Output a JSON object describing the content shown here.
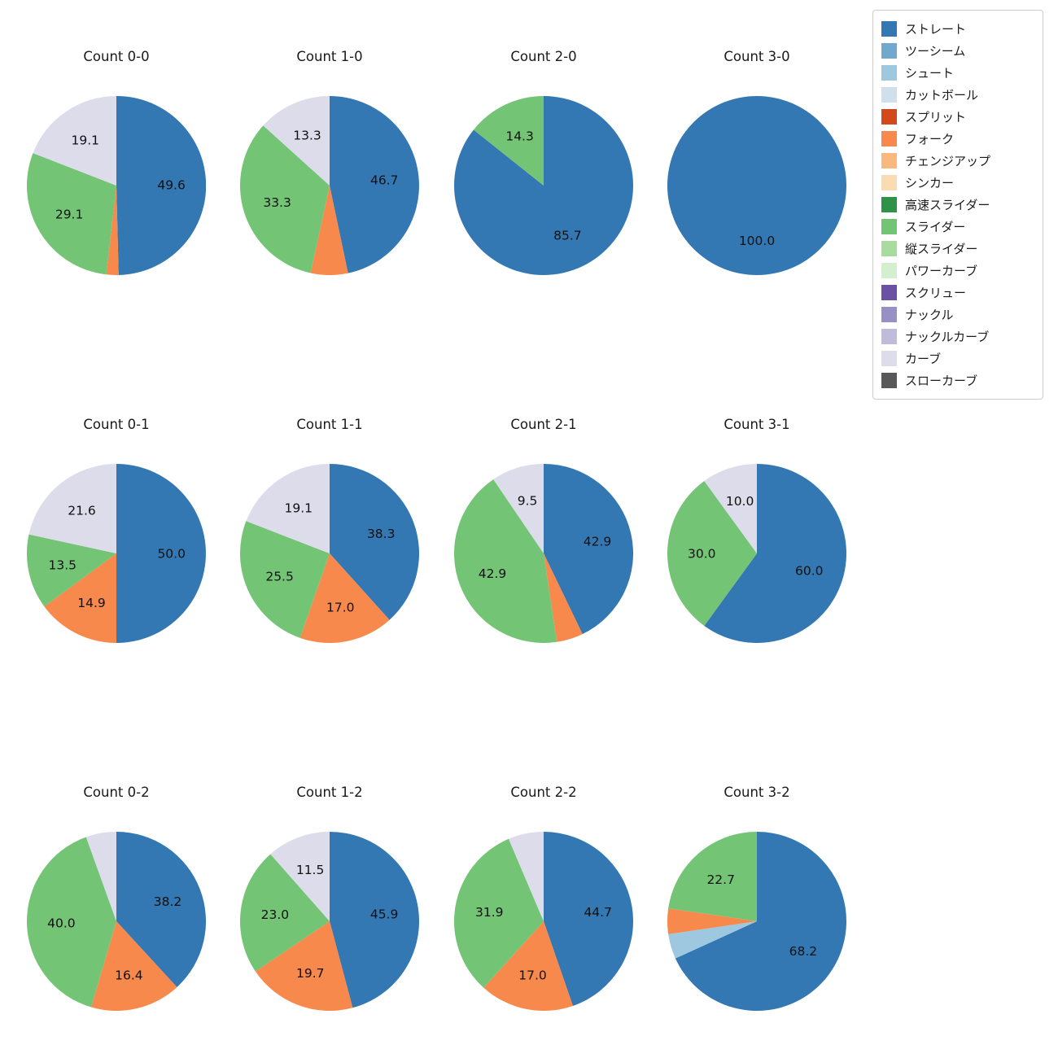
{
  "legend": {
    "items": [
      {
        "name": "ストレート",
        "color": "#3478b3"
      },
      {
        "name": "ツーシーム",
        "color": "#70a8ce"
      },
      {
        "name": "シュート",
        "color": "#9dc8e0"
      },
      {
        "name": "カットボール",
        "color": "#cfdfec"
      },
      {
        "name": "スプリット",
        "color": "#d2491c"
      },
      {
        "name": "フォーク",
        "color": "#f6894b"
      },
      {
        "name": "チェンジアップ",
        "color": "#f9b97e"
      },
      {
        "name": "シンカー",
        "color": "#fbdcb2"
      },
      {
        "name": "高速スライダー",
        "color": "#2e9247"
      },
      {
        "name": "スライダー",
        "color": "#74c476"
      },
      {
        "name": "縦スライダー",
        "color": "#a7dc9e"
      },
      {
        "name": "パワーカーブ",
        "color": "#d4efcd"
      },
      {
        "name": "スクリュー",
        "color": "#6a51a3"
      },
      {
        "name": "ナックル",
        "color": "#9790c6"
      },
      {
        "name": "ナックルカーブ",
        "color": "#bdbcdb"
      },
      {
        "name": "カーブ",
        "color": "#dcdcea"
      },
      {
        "name": "スローカーブ",
        "color": "#585858"
      }
    ]
  },
  "chart_data": [
    {
      "type": "pie",
      "title": "Count 0-0",
      "slices": [
        {
          "name": "ストレート",
          "value": 49.6,
          "label": "49.6"
        },
        {
          "name": "フォーク",
          "value": 2.2,
          "label": ""
        },
        {
          "name": "スライダー",
          "value": 29.1,
          "label": "29.1"
        },
        {
          "name": "カーブ",
          "value": 19.1,
          "label": "19.1"
        }
      ]
    },
    {
      "type": "pie",
      "title": "Count 1-0",
      "slices": [
        {
          "name": "ストレート",
          "value": 46.7,
          "label": "46.7"
        },
        {
          "name": "フォーク",
          "value": 6.7,
          "label": ""
        },
        {
          "name": "スライダー",
          "value": 33.3,
          "label": "33.3"
        },
        {
          "name": "カーブ",
          "value": 13.3,
          "label": "13.3"
        }
      ]
    },
    {
      "type": "pie",
      "title": "Count 2-0",
      "slices": [
        {
          "name": "ストレート",
          "value": 85.7,
          "label": "85.7"
        },
        {
          "name": "スライダー",
          "value": 14.3,
          "label": "14.3"
        }
      ]
    },
    {
      "type": "pie",
      "title": "Count 3-0",
      "slices": [
        {
          "name": "ストレート",
          "value": 100.0,
          "label": "100.0"
        }
      ]
    },
    {
      "type": "pie",
      "title": "Count 0-1",
      "slices": [
        {
          "name": "ストレート",
          "value": 50.0,
          "label": "50.0"
        },
        {
          "name": "フォーク",
          "value": 14.9,
          "label": "14.9"
        },
        {
          "name": "スライダー",
          "value": 13.5,
          "label": "13.5"
        },
        {
          "name": "カーブ",
          "value": 21.6,
          "label": "21.6"
        }
      ]
    },
    {
      "type": "pie",
      "title": "Count 1-1",
      "slices": [
        {
          "name": "ストレート",
          "value": 38.3,
          "label": "38.3"
        },
        {
          "name": "フォーク",
          "value": 17.0,
          "label": "17.0"
        },
        {
          "name": "スライダー",
          "value": 25.5,
          "label": "25.5"
        },
        {
          "name": "カーブ",
          "value": 19.1,
          "label": "19.1"
        }
      ]
    },
    {
      "type": "pie",
      "title": "Count 2-1",
      "slices": [
        {
          "name": "ストレート",
          "value": 42.9,
          "label": "42.9"
        },
        {
          "name": "フォーク",
          "value": 4.8,
          "label": ""
        },
        {
          "name": "スライダー",
          "value": 42.9,
          "label": "42.9"
        },
        {
          "name": "カーブ",
          "value": 9.5,
          "label": "9.5"
        }
      ]
    },
    {
      "type": "pie",
      "title": "Count 3-1",
      "slices": [
        {
          "name": "ストレート",
          "value": 60.0,
          "label": "60.0"
        },
        {
          "name": "スライダー",
          "value": 30.0,
          "label": "30.0"
        },
        {
          "name": "カーブ",
          "value": 10.0,
          "label": "10.0"
        }
      ]
    },
    {
      "type": "pie",
      "title": "Count 0-2",
      "slices": [
        {
          "name": "ストレート",
          "value": 38.2,
          "label": "38.2"
        },
        {
          "name": "フォーク",
          "value": 16.4,
          "label": "16.4"
        },
        {
          "name": "スライダー",
          "value": 40.0,
          "label": "40.0"
        },
        {
          "name": "カーブ",
          "value": 5.5,
          "label": ""
        }
      ]
    },
    {
      "type": "pie",
      "title": "Count 1-2",
      "slices": [
        {
          "name": "ストレート",
          "value": 45.9,
          "label": "45.9"
        },
        {
          "name": "フォーク",
          "value": 19.7,
          "label": "19.7"
        },
        {
          "name": "スライダー",
          "value": 23.0,
          "label": "23.0"
        },
        {
          "name": "カーブ",
          "value": 11.5,
          "label": "11.5"
        }
      ]
    },
    {
      "type": "pie",
      "title": "Count 2-2",
      "slices": [
        {
          "name": "ストレート",
          "value": 44.7,
          "label": "44.7"
        },
        {
          "name": "フォーク",
          "value": 17.0,
          "label": "17.0"
        },
        {
          "name": "スライダー",
          "value": 31.9,
          "label": "31.9"
        },
        {
          "name": "カーブ",
          "value": 6.4,
          "label": ""
        }
      ]
    },
    {
      "type": "pie",
      "title": "Count 3-2",
      "slices": [
        {
          "name": "ストレート",
          "value": 68.2,
          "label": "68.2"
        },
        {
          "name": "シュート",
          "value": 4.5,
          "label": ""
        },
        {
          "name": "フォーク",
          "value": 4.6,
          "label": ""
        },
        {
          "name": "スライダー",
          "value": 22.7,
          "label": "22.7"
        }
      ]
    }
  ]
}
